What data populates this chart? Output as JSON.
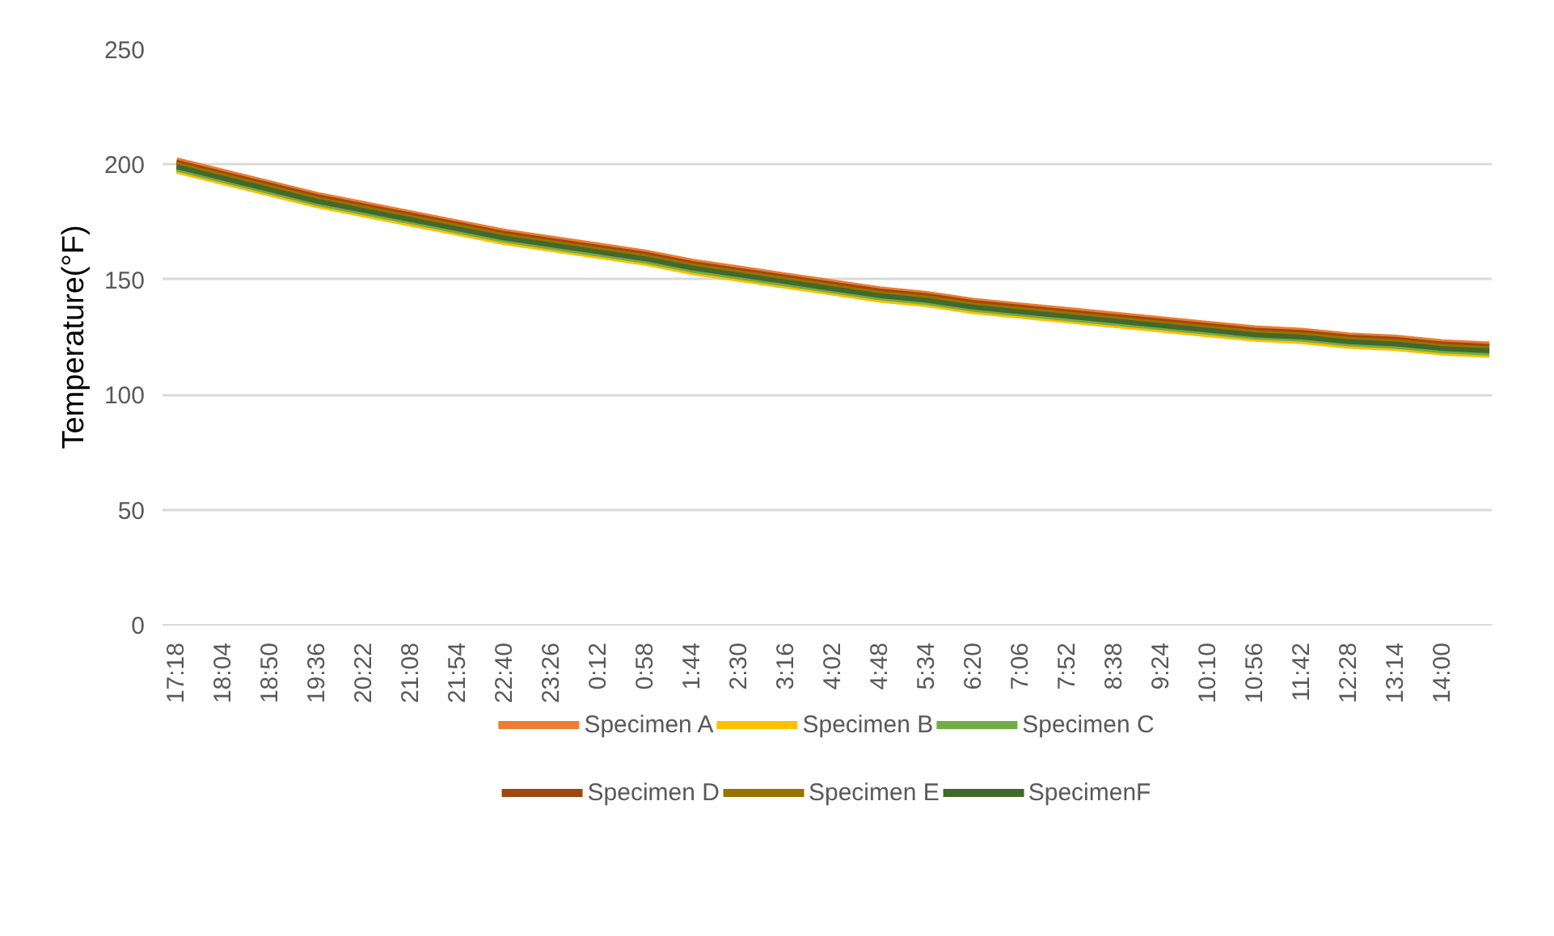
{
  "chart_data": {
    "type": "line",
    "ylabel": "Temperature(°F)",
    "categories": [
      "17:18",
      "18:04",
      "18:50",
      "19:36",
      "20:22",
      "21:08",
      "21:54",
      "22:40",
      "23:26",
      "0:12",
      "0:58",
      "1:44",
      "2:30",
      "3:16",
      "4:02",
      "4:48",
      "5:34",
      "6:20",
      "7:06",
      "7:52",
      "8:38",
      "9:24",
      "10:10",
      "10:56",
      "11:42",
      "12:28",
      "13:14",
      "14:00",
      null
    ],
    "series": [
      {
        "name": "Specimen A",
        "color": "#ed7d31",
        "values": [
          202,
          197,
          192,
          187,
          183,
          179,
          175,
          171,
          168,
          165,
          162,
          158,
          155,
          152,
          149,
          146,
          144,
          141,
          139,
          137,
          135,
          133,
          131,
          129,
          128,
          126,
          125,
          123,
          122
        ]
      },
      {
        "name": "Specimen B",
        "color": "#ffc000",
        "values": [
          197,
          192,
          187,
          182,
          178,
          174,
          170,
          166,
          163,
          160,
          157,
          153,
          150,
          147,
          144,
          141,
          139,
          136,
          134,
          132,
          130,
          128,
          126,
          124,
          123,
          121,
          120,
          118,
          117
        ]
      },
      {
        "name": "Specimen C",
        "color": "#70ad47",
        "values": [
          198,
          193,
          188,
          183,
          179,
          175,
          171,
          167,
          164,
          161,
          158,
          154,
          151,
          148,
          145,
          142,
          140,
          137,
          135,
          133,
          131,
          129,
          127,
          125,
          124,
          122,
          121,
          119,
          118
        ]
      },
      {
        "name": "Specimen D",
        "color": "#9e480e",
        "values": [
          201,
          196,
          191,
          186,
          182,
          178,
          174,
          170,
          167,
          164,
          161,
          157,
          154,
          151,
          148,
          145,
          143,
          140,
          138,
          136,
          134,
          132,
          130,
          128,
          127,
          125,
          124,
          122,
          121
        ]
      },
      {
        "name": "Specimen E",
        "color": "#997300",
        "values": [
          200,
          195,
          190,
          185,
          181,
          177,
          173,
          169,
          166,
          163,
          160,
          156,
          153,
          150,
          147,
          144,
          142,
          139,
          137,
          135,
          133,
          131,
          129,
          127,
          126,
          124,
          123,
          121,
          120
        ]
      },
      {
        "name": "SpecimenF",
        "color": "#43682b",
        "values": [
          199,
          194,
          189,
          184,
          180,
          176,
          172,
          168,
          165,
          162,
          159,
          155,
          152,
          149,
          146,
          143,
          141,
          138,
          136,
          134,
          132,
          130,
          128,
          126,
          125,
          123,
          122,
          120,
          119
        ]
      }
    ],
    "ylim": [
      0,
      250
    ],
    "yticks": [
      0,
      50,
      100,
      150,
      200,
      250
    ],
    "grid": "y",
    "legend": "bottom",
    "marker": "none",
    "line_style": "solid"
  }
}
